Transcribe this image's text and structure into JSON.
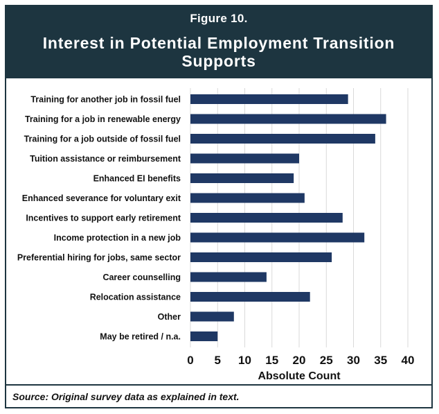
{
  "figure": {
    "label": "Figure 10.",
    "title": "Interest in Potential Employment Transition Supports"
  },
  "source": "Source: Original survey data as explained in text.",
  "colors": {
    "header_bg": "#1d3540",
    "bar": "#1f3864",
    "grid": "#d9d9d9"
  },
  "chart_data": {
    "type": "bar",
    "orientation": "horizontal",
    "categories": [
      "Training for another job in fossil fuel",
      "Training for a job in renewable energy",
      "Training for a job outside of fossil fuel",
      "Tuition assistance or reimbursement",
      "Enhanced EI benefits",
      "Enhanced severance for voluntary exit",
      "Incentives to support early retirement",
      "Income protection in a new job",
      "Preferential hiring for jobs, same sector",
      "Career counselling",
      "Relocation assistance",
      "Other",
      "May be retired / n.a."
    ],
    "values": [
      29,
      36,
      34,
      20,
      19,
      21,
      28,
      32,
      26,
      14,
      22,
      8,
      5
    ],
    "xlabel": "Absolute Count",
    "ylabel": "",
    "xlim": [
      0,
      40
    ],
    "xticks": [
      0,
      5,
      10,
      15,
      20,
      25,
      30,
      35,
      40
    ],
    "grid": "vertical"
  }
}
